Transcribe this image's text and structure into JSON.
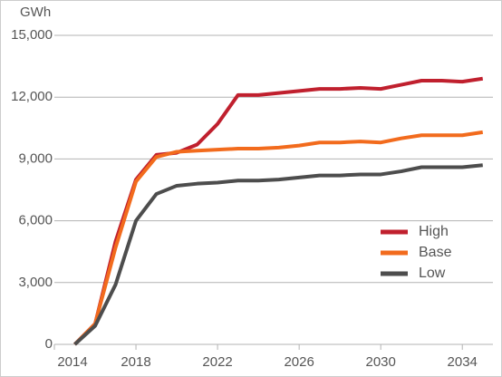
{
  "chart_data": {
    "type": "line",
    "y_label": "GWh",
    "x": [
      2015,
      2016,
      2017,
      2018,
      2019,
      2020,
      2021,
      2022,
      2023,
      2024,
      2025,
      2026,
      2027,
      2028,
      2029,
      2030,
      2031,
      2032,
      2033,
      2034,
      2035
    ],
    "series": [
      {
        "name": "High",
        "color": "#c0202e",
        "values": [
          0,
          1000,
          5000,
          8000,
          9200,
          9300,
          9700,
          10700,
          12100,
          12100,
          12200,
          12300,
          12400,
          12400,
          12450,
          12400,
          12600,
          12800,
          12800,
          12750,
          12900
        ]
      },
      {
        "name": "Base",
        "color": "#f26b1d",
        "values": [
          0,
          1000,
          4700,
          7900,
          9100,
          9350,
          9400,
          9450,
          9500,
          9500,
          9550,
          9650,
          9800,
          9800,
          9850,
          9800,
          10000,
          10150,
          10150,
          10150,
          10300
        ]
      },
      {
        "name": "Low",
        "color": "#4d4d4d",
        "values": [
          0,
          900,
          2900,
          6000,
          7300,
          7700,
          7800,
          7850,
          7950,
          7950,
          8000,
          8100,
          8200,
          8200,
          8250,
          8250,
          8400,
          8600,
          8600,
          8600,
          8700
        ]
      }
    ],
    "xlim": [
      2014,
      2035.5
    ],
    "xticks": [
      2014,
      2018,
      2022,
      2026,
      2030,
      2034
    ],
    "ylim": [
      0,
      15000
    ],
    "yticks": [
      0,
      {
        "value": 3000,
        "label": "3,000"
      },
      {
        "value": 6000,
        "label": "6,000"
      },
      {
        "value": 9000,
        "label": "9,000"
      },
      {
        "value": 12000,
        "label": "12,000"
      },
      {
        "value": 15000,
        "label": "15,000"
      }
    ],
    "grid": true,
    "legend": "lower right"
  }
}
